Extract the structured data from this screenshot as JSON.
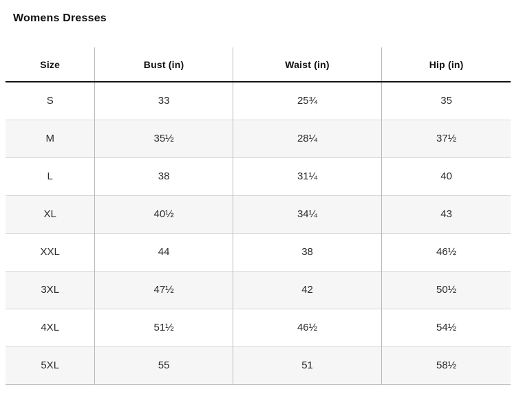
{
  "page": {
    "title": "Womens Dresses"
  },
  "table": {
    "columns": [
      "Size",
      "Bust (in)",
      "Waist (in)",
      "Hip (in)"
    ],
    "rows": [
      {
        "size": "S",
        "bust": "33",
        "waist": "25¾",
        "hip": "35"
      },
      {
        "size": "M",
        "bust": "35½",
        "waist": "28¼",
        "hip": "37½"
      },
      {
        "size": "L",
        "bust": "38",
        "waist": "31¼",
        "hip": "40"
      },
      {
        "size": "XL",
        "bust": "40½",
        "waist": "34¼",
        "hip": "43"
      },
      {
        "size": "XXL",
        "bust": "44",
        "waist": "38",
        "hip": "46½"
      },
      {
        "size": "3XL",
        "bust": "47½",
        "waist": "42",
        "hip": "50½"
      },
      {
        "size": "4XL",
        "bust": "51½",
        "waist": "46½",
        "hip": "54½"
      },
      {
        "size": "5XL",
        "bust": "55",
        "waist": "51",
        "hip": "58½"
      }
    ]
  },
  "colors": {
    "header_rule": "#111111",
    "column_divider": "#b9b9b9",
    "row_separator": "#d8d8d8",
    "alt_row_background": "#f6f6f6",
    "text": "#2b2b2b"
  }
}
